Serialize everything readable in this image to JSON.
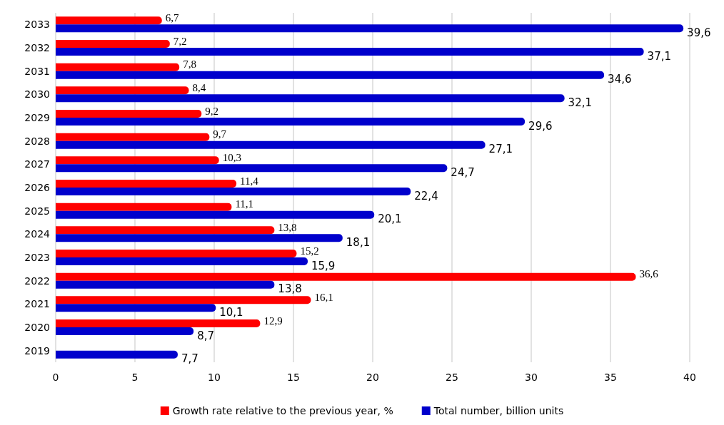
{
  "chart_data": {
    "type": "bar",
    "orientation": "horizontal",
    "categories": [
      "2033",
      "2032",
      "2031",
      "2030",
      "2029",
      "2028",
      "2027",
      "2026",
      "2025",
      "2024",
      "2023",
      "2022",
      "2021",
      "2020",
      "2019"
    ],
    "series": [
      {
        "name": "Growth rate relative to the previous year, %",
        "color": "#ff0000",
        "values": [
          6.7,
          7.2,
          7.8,
          8.4,
          9.2,
          9.7,
          10.3,
          11.4,
          11.1,
          13.8,
          15.2,
          36.6,
          16.1,
          12.9,
          null
        ],
        "value_labels": [
          "6,7",
          "7,2",
          "7,8",
          "8,4",
          "9,2",
          "9,7",
          "10,3",
          "11,4",
          "11,1",
          "13,8",
          "15,2",
          "36,6",
          "16,1",
          "12,9",
          null
        ]
      },
      {
        "name": "Total number, billion units",
        "color": "#0000cc",
        "values": [
          39.6,
          37.1,
          34.6,
          32.1,
          29.6,
          27.1,
          24.7,
          22.4,
          20.1,
          18.1,
          15.9,
          13.8,
          10.1,
          8.7,
          7.7
        ],
        "value_labels": [
          "39,6",
          "37,1",
          "34,6",
          "32,1",
          "29,6",
          "27,1",
          "24,7",
          "22,4",
          "20,1",
          "18,1",
          "15,9",
          "13,8",
          "10,1",
          "8,7",
          "7,7"
        ]
      }
    ],
    "xlim": [
      0,
      40
    ],
    "xticks": [
      0,
      5,
      10,
      15,
      20,
      25,
      30,
      35,
      40
    ],
    "grid": "x",
    "legend": "bottom"
  }
}
